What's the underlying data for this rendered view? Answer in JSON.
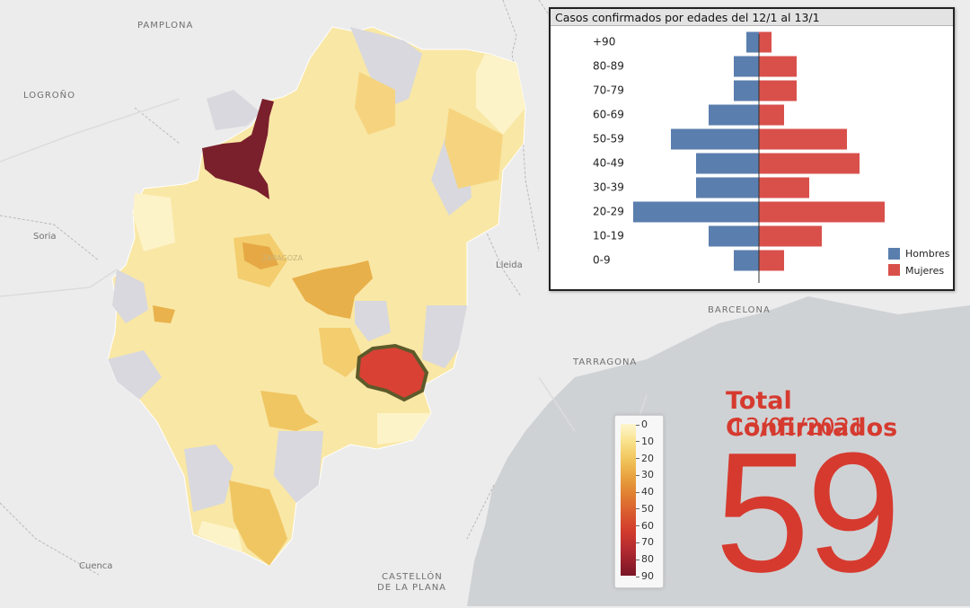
{
  "map": {
    "cities": {
      "pamplona": "PAMPLONA",
      "logrono": "LOGROÑO",
      "soria": "Soria",
      "lleida": "Lleida",
      "barcelona": "BARCELONA",
      "tarragona": "TARRAGONA",
      "castellon_1": "CASTELLÓN",
      "castellon_2": "DE LA PLANA",
      "cuenca": "Cuenca"
    },
    "colors": {
      "sea": "#cfd2d5",
      "land": "#ececec",
      "no_data": "#d8d8de",
      "low": "#fbe9a3",
      "lighter": "#fdf3c8",
      "mid": "#f4cf6f",
      "midhigh": "#e9b24c",
      "high": "#d94135",
      "highest": "#7a1f2c"
    }
  },
  "pyramid": {
    "title": "Casos confirmados por edades del 12/1 al 13/1",
    "age_groups": [
      "+90",
      "80-89",
      "70-79",
      "60-69",
      "50-59",
      "40-49",
      "30-39",
      "20-29",
      "10-19",
      "0-9"
    ],
    "hombres": [
      1,
      2,
      2,
      4,
      7,
      5,
      5,
      10,
      4,
      2
    ],
    "mujeres": [
      1,
      3,
      3,
      2,
      7,
      8,
      4,
      10,
      5,
      2
    ],
    "legend": {
      "hombres": "Hombres",
      "mujeres": "Mujeres"
    },
    "colors": {
      "hombres": "#5a7eae",
      "mujeres": "#d9504b"
    }
  },
  "chart_data": {
    "type": "bar",
    "title": "Casos confirmados por edades del 12/1 al 13/1",
    "categories": [
      "+90",
      "80-89",
      "70-79",
      "60-69",
      "50-59",
      "40-49",
      "30-39",
      "20-29",
      "10-19",
      "0-9"
    ],
    "series": [
      {
        "name": "Hombres",
        "values": [
          1,
          2,
          2,
          4,
          7,
          5,
          5,
          10,
          4,
          2
        ]
      },
      {
        "name": "Mujeres",
        "values": [
          1,
          3,
          3,
          2,
          7,
          8,
          4,
          10,
          5,
          2
        ]
      }
    ],
    "orientation": "horizontal-pyramid",
    "legend_position": "bottom-right"
  },
  "legend": {
    "ticks": [
      "0",
      "10",
      "20",
      "30",
      "40",
      "50",
      "60",
      "70",
      "80",
      "90"
    ]
  },
  "total": {
    "label": "Total Confirmados",
    "date": "13/01/2021",
    "value": "59"
  }
}
